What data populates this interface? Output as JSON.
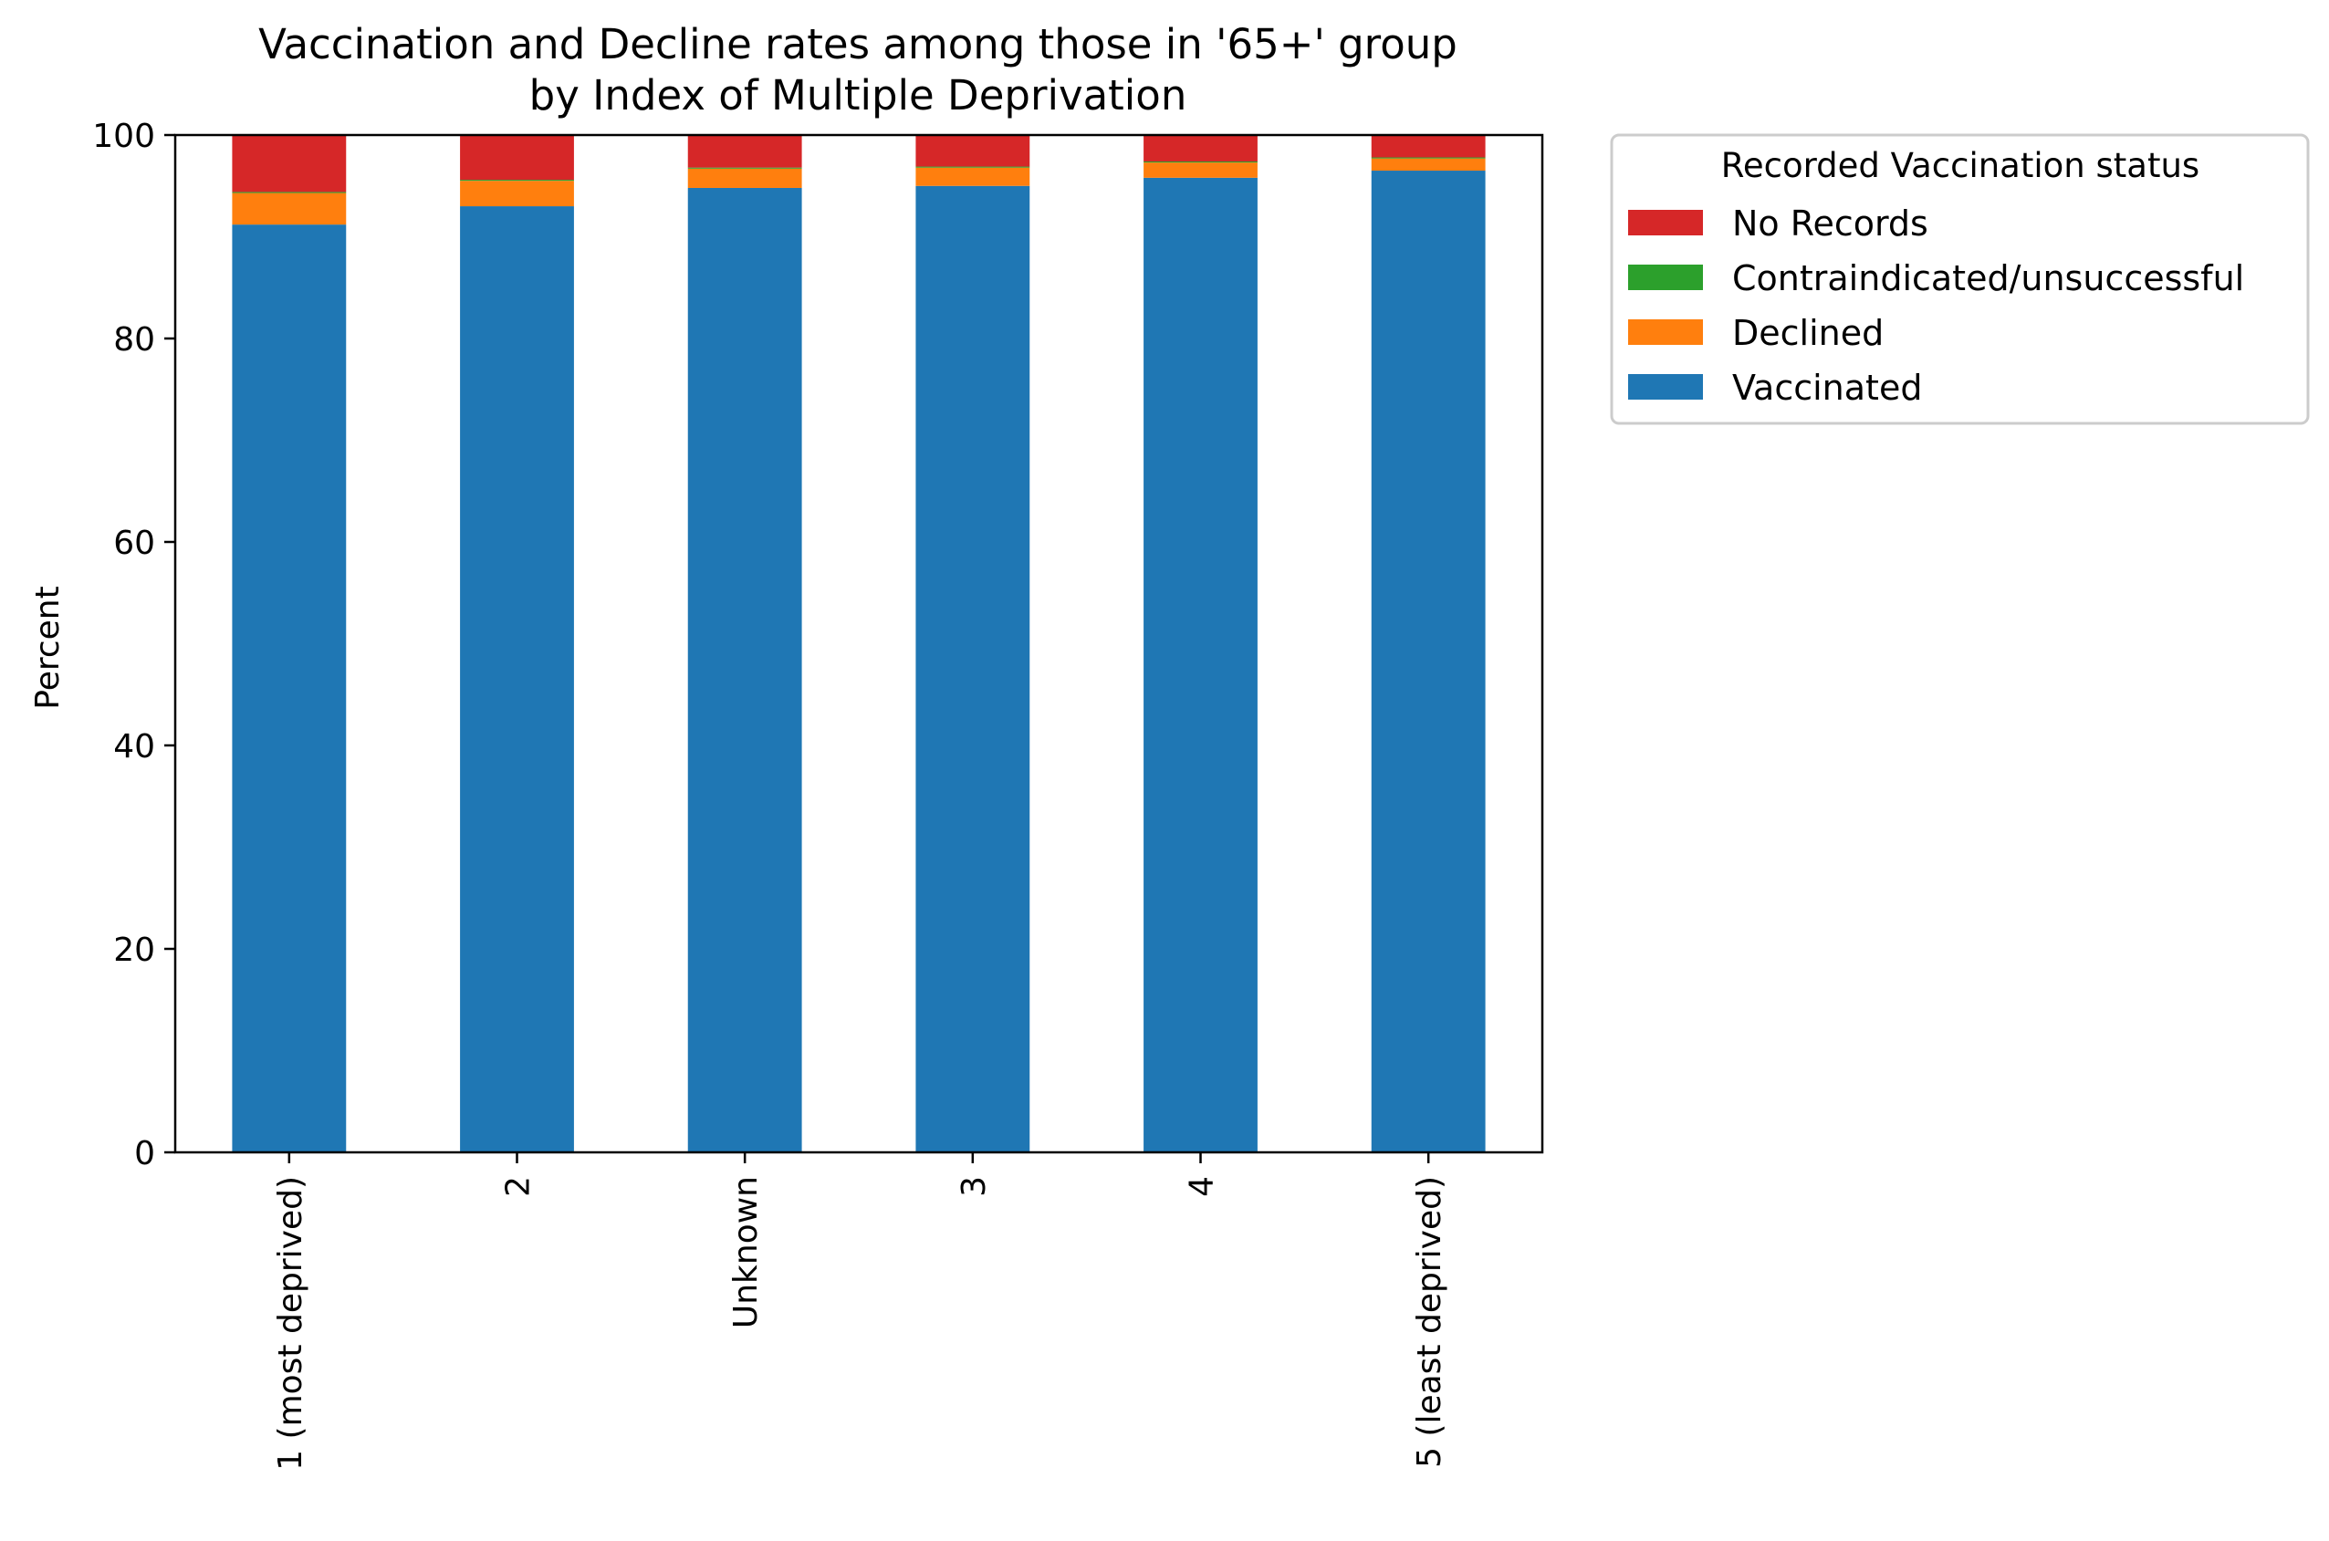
{
  "chart_data": {
    "type": "bar",
    "stacked": true,
    "title_line1": "Vaccination and Decline rates among those in '65+' group",
    "title_line2": "by Index of Multiple Deprivation",
    "xlabel": "",
    "ylabel": "Percent",
    "ylim": [
      0,
      100
    ],
    "yticks": [
      "0",
      "20",
      "40",
      "60",
      "80",
      "100"
    ],
    "categories": [
      "1 (most deprived)",
      "2",
      "Unknown",
      "3",
      "4",
      "5 (least deprived)"
    ],
    "series": [
      {
        "name": "Vaccinated",
        "color": "#1f77b4",
        "values": [
          91.2,
          93.0,
          94.8,
          95.0,
          95.8,
          96.5
        ]
      },
      {
        "name": "Declined",
        "color": "#ff7f0e",
        "values": [
          3.1,
          2.5,
          1.9,
          1.8,
          1.5,
          1.2
        ]
      },
      {
        "name": "Contraindicated/unsuccessful",
        "color": "#2ca02c",
        "values": [
          0.1,
          0.1,
          0.1,
          0.1,
          0.1,
          0.1
        ]
      },
      {
        "name": "No Records",
        "color": "#d62728",
        "values": [
          5.6,
          4.4,
          3.2,
          3.1,
          2.6,
          2.2
        ]
      }
    ],
    "legend": {
      "title": "Recorded Vaccination status",
      "placement": "outside-right",
      "items": [
        {
          "name": "No Records",
          "color": "#d62728"
        },
        {
          "name": "Contraindicated/unsuccessful",
          "color": "#2ca02c"
        },
        {
          "name": "Declined",
          "color": "#ff7f0e"
        },
        {
          "name": "Vaccinated",
          "color": "#1f77b4"
        }
      ]
    },
    "grid": false
  }
}
